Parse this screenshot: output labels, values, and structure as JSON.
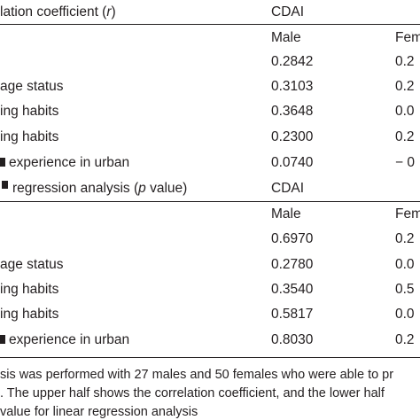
{
  "section1": {
    "title_pre": "lation coefficient (",
    "title_italic": "r",
    "title_post": ")",
    "col_group": "CDAI",
    "sub_male": "Male",
    "sub_female": "Fem",
    "rows": [
      {
        "label": "",
        "male": "0.2842",
        "female": "0.2"
      },
      {
        "label": "age status",
        "male": "0.3103",
        "female": "0.2"
      },
      {
        "label": "ing habits",
        "male": "0.3648",
        "female": "0.0"
      },
      {
        "label": "ing habits",
        "male": "0.2300",
        "female": "0.2"
      },
      {
        "label": "experience in urban",
        "male": "0.0740",
        "female": "− 0"
      }
    ]
  },
  "section2": {
    "title_pre": "regression analysis (",
    "title_italic": "p",
    "title_post": " value)",
    "col_group": "CDAI",
    "sub_male": "Male",
    "sub_female": "Fem",
    "rows": [
      {
        "label": "",
        "male": "0.6970",
        "female": "0.2"
      },
      {
        "label": "age status",
        "male": "0.2780",
        "female": "0.0"
      },
      {
        "label": "ing habits",
        "male": "0.3540",
        "female": "0.5"
      },
      {
        "label": "ing habits",
        "male": "0.5817",
        "female": "0.0"
      },
      {
        "label": "experience in urban",
        "male": "0.8030",
        "female": "0.2"
      }
    ]
  },
  "footnote": {
    "line1": "sis was performed with 27 males and 50 females who were able to pr",
    "line2": ". The upper half shows the correlation coefficient, and the lower half",
    "line3": "value for linear regression analysis"
  }
}
